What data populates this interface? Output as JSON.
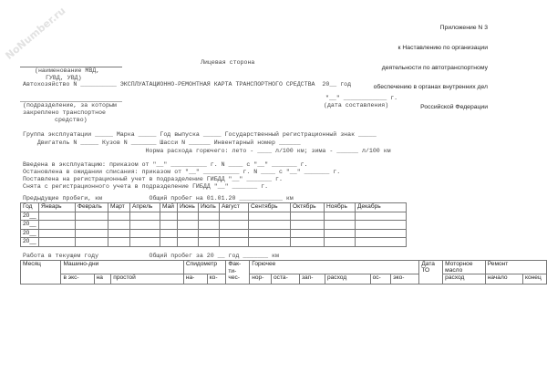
{
  "watermark": "NoNumber.ru",
  "appendix": [
    "Приложение N 3",
    "к Наставлению по организации",
    "деятельности по автотранспортному",
    "обеспечению в органах внутренних дел",
    "Российской Федерации"
  ],
  "side": "Лицевая сторона",
  "org_caption": [
    "(наименование МВД,",
    "ГУВД, УВД)"
  ],
  "title_line": "Автохозяйство N __________ ЭКСПЛУАТАЦИОННО-РЕМОНТНАЯ КАРТА ТРАНСПОРТНОГО СРЕДСТВА  20__ год",
  "unit_caption": [
    "(подразделение, за которым",
    "закреплено транспортное",
    "средство)"
  ],
  "date_line": "\"__\" ____________ г.",
  "date_caption": "(дата составления)",
  "fields": [
    "Группа эксплуатации _____ Марка _____ Год выпуска _____ Государственный регистрационный знак _____",
    "    Двигатель N _____ Кузов N _______ Шасси N ______ Инвентарный номер ______",
    "                                  Норма расхода горючего: лето - ____ л/100 км; зима - ______ л/100 км"
  ],
  "events": [
    "Введена в эксплуатацию: приказом от \"__\" __________ г. N ____ с \"__\" _______ г.",
    "Остановлена в ожидании списания: приказом от \"__\" __________ г. N ____ с \"__\" _______ г.",
    "Поставлена на регистрационный учет в подразделение ГИБДД \"__\" _______ г.",
    "Снята с регистрационного учета в подразделение ГИБДД \"__\" _______ г."
  ],
  "prev_mileage": "Предыдущие пробеги, км             Общий пробег на 01.01.20 ____________ км",
  "table1": {
    "headers": [
      "Год",
      "Январь",
      "Февраль",
      "Март",
      "Апрель",
      "Май",
      "Июнь",
      "Июль",
      "Август",
      "Сентябрь",
      "Октябрь",
      "Ноябрь",
      "Декабрь"
    ],
    "rows": [
      "20__",
      "20__",
      "20__",
      "20__"
    ]
  },
  "current_work": "Работа в текущем году              Общий пробег за 20 __ год _______ км",
  "table2": {
    "month": "Месяц",
    "machine_days": "Машино-дни",
    "speedometer": "Спидометр",
    "actual": "Фак-\nти-\nчес-",
    "fuel": "Горючее",
    "to_date": "Дата\nТО",
    "oil": "Моторное\nмасло",
    "repair": "Ремонт",
    "sub": {
      "in_exp": "в экс-",
      "on": "на",
      "idle": "простой",
      "start": "на-",
      "end": "ко-",
      "norm": "нор-",
      "rest": "оста-",
      "refill": "зап-",
      "consumption": "расход",
      "os": "ос-",
      "eco": "эко-",
      "oil_consumption": "расход",
      "repair_start": "начало",
      "repair_end": "конец"
    }
  }
}
